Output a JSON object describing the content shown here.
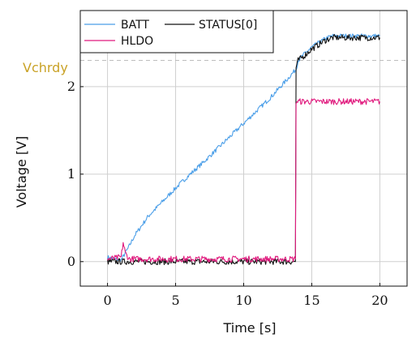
{
  "chart_data": {
    "type": "line",
    "xlabel": "Time [s]",
    "ylabel": "Voltage [V]",
    "xlim": [
      -2,
      22
    ],
    "ylim": [
      -0.28,
      2.87
    ],
    "xticks": [
      0,
      5,
      10,
      15,
      20
    ],
    "yticks": [
      0,
      1,
      2
    ],
    "grid": true,
    "legend": {
      "placement": "top-left"
    },
    "threshold": {
      "label": "Vchrdy",
      "y": 2.3,
      "color": "#c9a227",
      "style": "dashed"
    },
    "series": [
      {
        "name": "BATT",
        "color": "#4a9ee8",
        "x": [
          0,
          0.5,
          1.0,
          1.5,
          2,
          3,
          4,
          5,
          6,
          7,
          8,
          9,
          10,
          11,
          12,
          13,
          13.85,
          14.0,
          14.5,
          15.0,
          15.5,
          16.0,
          16.5,
          17.0,
          18.0,
          19.0,
          20.0
        ],
        "y": [
          0.05,
          0.03,
          0.02,
          0.15,
          0.3,
          0.52,
          0.68,
          0.84,
          0.99,
          1.13,
          1.28,
          1.43,
          1.58,
          1.73,
          1.88,
          2.05,
          2.2,
          2.3,
          2.38,
          2.45,
          2.5,
          2.55,
          2.58,
          2.58,
          2.58,
          2.58,
          2.58
        ]
      },
      {
        "name": "STATUS[0]",
        "color": "#111111",
        "x": [
          0,
          2,
          4,
          6,
          8,
          10,
          12,
          13.8,
          13.85,
          14.0,
          14.5,
          15.0,
          15.5,
          16.0,
          16.5,
          17.0,
          18.0,
          19.0,
          20.0
        ],
        "y": [
          0.0,
          0.0,
          0.0,
          0.0,
          0.0,
          0.0,
          0.0,
          0.0,
          2.22,
          2.3,
          2.36,
          2.43,
          2.48,
          2.53,
          2.56,
          2.56,
          2.56,
          2.56,
          2.56
        ]
      },
      {
        "name": "HLDO",
        "color": "#e0197d",
        "x": [
          0,
          0.6,
          1.0,
          1.15,
          1.3,
          1.6,
          2,
          4,
          6,
          8,
          10,
          12,
          13.8,
          13.85,
          14.2,
          15,
          16,
          17,
          18,
          19,
          20
        ],
        "y": [
          0.03,
          0.04,
          0.05,
          0.22,
          0.1,
          0.03,
          0.03,
          0.03,
          0.03,
          0.03,
          0.03,
          0.03,
          0.03,
          1.83,
          1.83,
          1.83,
          1.83,
          1.83,
          1.83,
          1.83,
          1.83
        ]
      }
    ]
  }
}
